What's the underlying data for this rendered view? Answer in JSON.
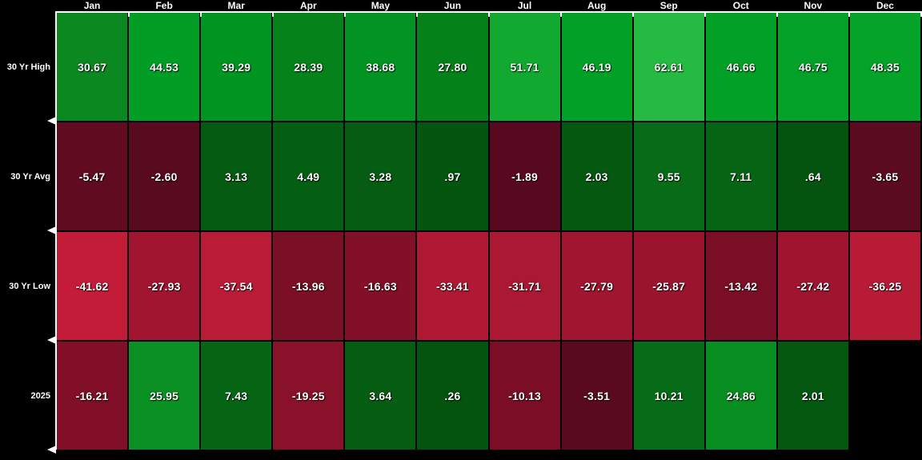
{
  "colors": {
    "background": "#000000",
    "text": "#ffffff",
    "axis": "#ffffff"
  },
  "chart_data": {
    "type": "heatmap",
    "title": "",
    "xlabel": "",
    "ylabel": "",
    "legend": "none",
    "grid": "off",
    "columns": [
      "Jan",
      "Feb",
      "Mar",
      "Apr",
      "May",
      "Jun",
      "Jul",
      "Aug",
      "Sep",
      "Oct",
      "Nov",
      "Dec"
    ],
    "rows": [
      {
        "label": "30 Yr High",
        "cells": [
          {
            "value": 30.67,
            "display": "30.67",
            "color": "#0b8820"
          },
          {
            "value": 44.53,
            "display": "44.53",
            "color": "#019d25"
          },
          {
            "value": 39.29,
            "display": "39.29",
            "color": "#009421"
          },
          {
            "value": 28.39,
            "display": "28.39",
            "color": "#058219"
          },
          {
            "value": 38.68,
            "display": "38.68",
            "color": "#029322"
          },
          {
            "value": 27.8,
            "display": "27.80",
            "color": "#058119"
          },
          {
            "value": 51.71,
            "display": "51.71",
            "color": "#12a930"
          },
          {
            "value": 46.19,
            "display": "46.19",
            "color": "#02a026"
          },
          {
            "value": 62.61,
            "display": "62.61",
            "color": "#25bb43"
          },
          {
            "value": 46.66,
            "display": "46.66",
            "color": "#02a026"
          },
          {
            "value": 46.75,
            "display": "46.75",
            "color": "#03a127"
          },
          {
            "value": 48.35,
            "display": "48.35",
            "color": "#05a328"
          }
        ]
      },
      {
        "label": "30 Yr Avg",
        "cells": [
          {
            "value": -5.47,
            "display": "-5.47",
            "color": "#600b20"
          },
          {
            "value": -2.6,
            "display": "-2.60",
            "color": "#580a1f"
          },
          {
            "value": 3.13,
            "display": "3.13",
            "color": "#055b11"
          },
          {
            "value": 4.49,
            "display": "4.49",
            "color": "#055f13"
          },
          {
            "value": 3.28,
            "display": "3.28",
            "color": "#055c12"
          },
          {
            "value": 0.97,
            "display": ".97",
            "color": "#045510"
          },
          {
            "value": -1.89,
            "display": "-1.89",
            "color": "#570a1f"
          },
          {
            "value": 2.03,
            "display": "2.03",
            "color": "#045810"
          },
          {
            "value": 9.55,
            "display": "9.55",
            "color": "#076b17"
          },
          {
            "value": 7.11,
            "display": "7.11",
            "color": "#066515"
          },
          {
            "value": 0.64,
            "display": ".64",
            "color": "#045410"
          },
          {
            "value": -3.65,
            "display": "-3.65",
            "color": "#5b0b20"
          }
        ]
      },
      {
        "label": "30 Yr Low",
        "cells": [
          {
            "value": -41.62,
            "display": "-41.62",
            "color": "#c31c39"
          },
          {
            "value": -27.93,
            "display": "-27.93",
            "color": "#a11531"
          },
          {
            "value": -37.54,
            "display": "-37.54",
            "color": "#b91c37"
          },
          {
            "value": -13.96,
            "display": "-13.96",
            "color": "#7b0f26"
          },
          {
            "value": -16.63,
            "display": "-16.63",
            "color": "#821028"
          },
          {
            "value": -33.41,
            "display": "-33.41",
            "color": "#af1934"
          },
          {
            "value": -31.71,
            "display": "-31.71",
            "color": "#ab1833"
          },
          {
            "value": -27.79,
            "display": "-27.79",
            "color": "#a01530"
          },
          {
            "value": -25.87,
            "display": "-25.87",
            "color": "#9b142e"
          },
          {
            "value": -13.42,
            "display": "-13.42",
            "color": "#7a0e26"
          },
          {
            "value": -27.42,
            "display": "-27.42",
            "color": "#9f1530"
          },
          {
            "value": -36.25,
            "display": "-36.25",
            "color": "#b71b36"
          }
        ]
      },
      {
        "label": "2025",
        "cells": [
          {
            "value": -16.21,
            "display": "-16.21",
            "color": "#810f27"
          },
          {
            "value": 25.95,
            "display": "25.95",
            "color": "#0a9023"
          },
          {
            "value": 7.43,
            "display": "7.43",
            "color": "#066615"
          },
          {
            "value": -19.25,
            "display": "-19.25",
            "color": "#891129"
          },
          {
            "value": 3.64,
            "display": "3.64",
            "color": "#055d12"
          },
          {
            "value": 0.26,
            "display": ".26",
            "color": "#04530f"
          },
          {
            "value": -10.13,
            "display": "-10.13",
            "color": "#7b0e26"
          },
          {
            "value": -3.51,
            "display": "-3.51",
            "color": "#5a0a1f"
          },
          {
            "value": 10.21,
            "display": "10.21",
            "color": "#076c17"
          },
          {
            "value": 24.86,
            "display": "24.86",
            "color": "#078d20"
          },
          {
            "value": 2.01,
            "display": "2.01",
            "color": "#045810"
          },
          null
        ]
      }
    ],
    "palette": {
      "positive_high": "#25bb43",
      "positive_low": "#04530f",
      "negative_high": "#c31c39",
      "negative_low": "#570a1f"
    }
  }
}
